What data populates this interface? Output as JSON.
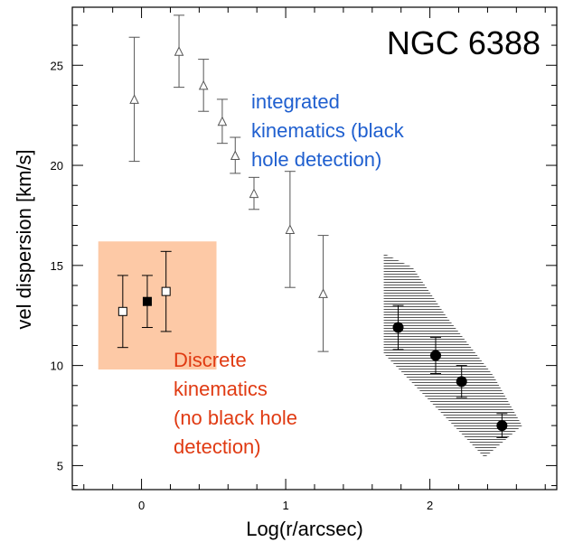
{
  "chart_data": {
    "type": "scatter",
    "title": "NGC 6388",
    "xlabel": "Log(r/arcsec)",
    "ylabel": "vel dispersion [km/s]",
    "xlim": [
      -0.48,
      2.88
    ],
    "ylim": [
      3.8,
      27.9
    ],
    "x_ticks": [
      "0",
      "1",
      "2"
    ],
    "y_ticks": [
      "5",
      "10",
      "15",
      "20",
      "25"
    ],
    "colors": {
      "axes": "#000000",
      "integrated": "#555555",
      "discrete_box": "#fdc9a6",
      "integrated_text": "#1f5fcf",
      "discrete_text": "#e03a12",
      "hatch": "#444444"
    },
    "series": [
      {
        "marker": "open-triangle",
        "points": [
          {
            "x": -0.05,
            "y": 23.3,
            "lo": 20.2,
            "hi": 26.4
          },
          {
            "x": 0.26,
            "y": 25.7,
            "lo": 23.9,
            "hi": 27.5
          },
          {
            "x": 0.43,
            "y": 24.0,
            "lo": 22.7,
            "hi": 25.3
          },
          {
            "x": 0.56,
            "y": 22.2,
            "lo": 21.1,
            "hi": 23.3
          },
          {
            "x": 0.65,
            "y": 20.5,
            "lo": 19.6,
            "hi": 21.4
          },
          {
            "x": 0.78,
            "y": 18.6,
            "lo": 17.8,
            "hi": 19.4
          },
          {
            "x": 1.03,
            "y": 16.8,
            "lo": 13.9,
            "hi": 19.7
          },
          {
            "x": 1.26,
            "y": 13.6,
            "lo": 10.7,
            "hi": 16.5
          }
        ]
      },
      {
        "marker": "open-square",
        "points": [
          {
            "x": -0.13,
            "y": 12.7,
            "lo": 10.9,
            "hi": 14.5
          },
          {
            "x": 0.17,
            "y": 13.7,
            "lo": 11.7,
            "hi": 15.7
          }
        ]
      },
      {
        "marker": "filled-square",
        "points": [
          {
            "x": 0.04,
            "y": 13.2,
            "lo": 11.9,
            "hi": 14.5
          }
        ]
      },
      {
        "marker": "filled-circle",
        "points": [
          {
            "x": 1.78,
            "y": 11.9,
            "lo": 10.8,
            "hi": 13.0
          },
          {
            "x": 2.04,
            "y": 10.5,
            "lo": 9.6,
            "hi": 11.4
          },
          {
            "x": 2.22,
            "y": 9.2,
            "lo": 8.4,
            "hi": 10.0
          },
          {
            "x": 2.5,
            "y": 7.0,
            "lo": 6.4,
            "hi": 7.6
          }
        ]
      }
    ],
    "shaded_box": {
      "x": [
        -0.3,
        0.52
      ],
      "y": [
        9.8,
        16.2
      ]
    },
    "hatched_region": [
      [
        1.68,
        15.6
      ],
      [
        1.88,
        14.9
      ],
      [
        2.12,
        12.4
      ],
      [
        2.44,
        9.5
      ],
      [
        2.64,
        7.0
      ],
      [
        2.38,
        5.4
      ],
      [
        1.68,
        10.6
      ]
    ],
    "annotations": {
      "integrated_lines": [
        "integrated",
        "kinematics (black",
        "hole detection)"
      ],
      "discrete_lines": [
        "Discrete",
        "kinematics",
        "(no black hole",
        "detection)"
      ]
    }
  }
}
